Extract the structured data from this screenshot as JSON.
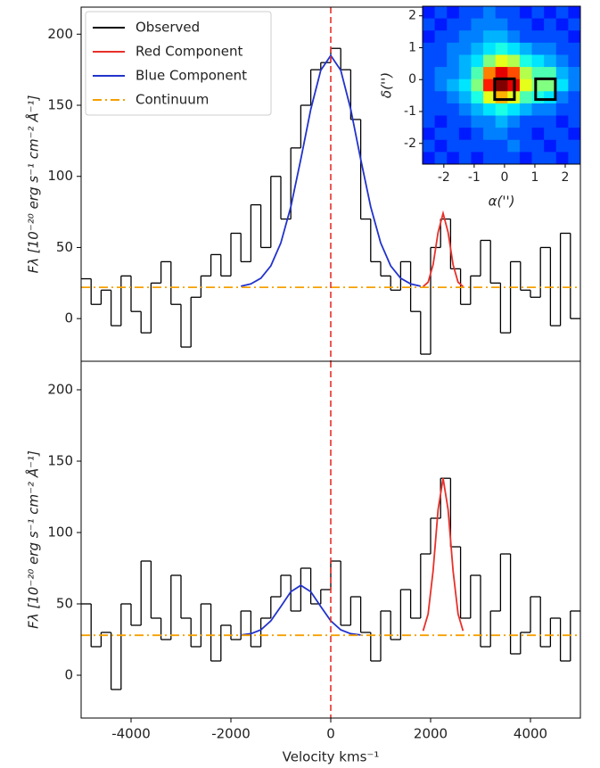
{
  "chart_data": [
    {
      "type": "line",
      "ylabel": "Fλ [10⁻²⁰ erg s⁻¹ cm⁻² Å⁻¹]",
      "xlim": [
        -5000,
        5000
      ],
      "ylim": [
        -30,
        219
      ],
      "yticks": [
        0,
        50,
        100,
        150,
        200
      ],
      "vline": 0,
      "vline_color": "#e8302a",
      "legend": "upper left",
      "series": [
        {
          "name": "Observed",
          "color": "#000000",
          "style": "step",
          "x": [
            -4900,
            -4700,
            -4500,
            -4300,
            -4100,
            -3900,
            -3700,
            -3500,
            -3300,
            -3100,
            -2900,
            -2700,
            -2500,
            -2300,
            -2100,
            -1900,
            -1700,
            -1500,
            -1300,
            -1100,
            -900,
            -700,
            -500,
            -300,
            -100,
            100,
            300,
            500,
            700,
            900,
            1100,
            1300,
            1500,
            1700,
            1900,
            2100,
            2300,
            2500,
            2700,
            2900,
            3100,
            3300,
            3500,
            3700,
            3900,
            4100,
            4300,
            4500,
            4700,
            4900
          ],
          "values": [
            28,
            10,
            20,
            -5,
            30,
            5,
            -10,
            25,
            40,
            10,
            -20,
            15,
            30,
            45,
            30,
            60,
            40,
            80,
            50,
            100,
            70,
            120,
            150,
            175,
            180,
            190,
            175,
            140,
            70,
            40,
            30,
            20,
            40,
            5,
            -25,
            50,
            70,
            35,
            10,
            30,
            55,
            25,
            -10,
            40,
            20,
            15,
            50,
            -5,
            60,
            0
          ]
        },
        {
          "name": "Red Component",
          "color": "#e8302a",
          "style": "solid",
          "x": [
            1850,
            1950,
            2050,
            2150,
            2250,
            2350,
            2450,
            2550,
            2650
          ],
          "values": [
            22.5,
            25.6,
            37.9,
            60.7,
            74,
            60.7,
            37.9,
            25.6,
            22.5
          ]
        },
        {
          "name": "Blue Component",
          "color": "#2233cc",
          "style": "solid",
          "x": [
            -1800,
            -1600,
            -1400,
            -1200,
            -1000,
            -800,
            -600,
            -400,
            -200,
            0,
            200,
            400,
            600,
            800,
            1000,
            1200,
            1400,
            1600,
            1800
          ],
          "values": [
            22.8,
            24.4,
            28.4,
            37.1,
            53.2,
            78.6,
            112,
            147.2,
            174.6,
            185,
            174.6,
            147.2,
            112,
            78.6,
            53.2,
            37.1,
            28.4,
            24.4,
            22.8
          ]
        },
        {
          "name": "Continuum",
          "color": "#f5a000",
          "style": "dashdot",
          "x": [
            -5000,
            5000
          ],
          "values": [
            22,
            22
          ]
        }
      ]
    },
    {
      "type": "line",
      "ylabel": "Fλ [10⁻²⁰ erg s⁻¹ cm⁻² Å⁻¹]",
      "xlabel": "Velocity kms⁻¹",
      "xlim": [
        -5000,
        5000
      ],
      "ylim": [
        -30,
        220
      ],
      "xticks": [
        -4000,
        -2000,
        0,
        2000,
        4000
      ],
      "yticks": [
        0,
        50,
        100,
        150,
        200
      ],
      "vline": 0,
      "vline_color": "#e8302a",
      "series": [
        {
          "color": "#000000",
          "style": "step",
          "x": [
            -4900,
            -4700,
            -4500,
            -4300,
            -4100,
            -3900,
            -3700,
            -3500,
            -3300,
            -3100,
            -2900,
            -2700,
            -2500,
            -2300,
            -2100,
            -1900,
            -1700,
            -1500,
            -1300,
            -1100,
            -900,
            -700,
            -500,
            -300,
            -100,
            100,
            300,
            500,
            700,
            900,
            1100,
            1300,
            1500,
            1700,
            1900,
            2100,
            2300,
            2500,
            2700,
            2900,
            3100,
            3300,
            3500,
            3700,
            3900,
            4100,
            4300,
            4500,
            4700,
            4900
          ],
          "values": [
            50,
            20,
            30,
            -10,
            50,
            35,
            80,
            40,
            25,
            70,
            40,
            20,
            50,
            10,
            35,
            25,
            45,
            20,
            40,
            55,
            70,
            45,
            75,
            50,
            60,
            80,
            35,
            55,
            30,
            10,
            45,
            25,
            60,
            40,
            85,
            110,
            138,
            90,
            40,
            70,
            20,
            45,
            85,
            15,
            30,
            55,
            20,
            40,
            10,
            45
          ]
        },
        {
          "color": "#e8302a",
          "style": "solid",
          "x": [
            1850,
            1950,
            2050,
            2150,
            2250,
            2350,
            2450,
            2550,
            2650
          ],
          "values": [
            31.1,
            42.9,
            73.2,
            116.1,
            138,
            116.1,
            73.2,
            42.9,
            31.1
          ]
        },
        {
          "color": "#2233cc",
          "style": "solid",
          "x": [
            -1800,
            -1600,
            -1400,
            -1200,
            -1000,
            -800,
            -600,
            -400,
            -200,
            0,
            200,
            400,
            600
          ],
          "values": [
            28.2,
            29.1,
            31.8,
            38.1,
            48.1,
            58.5,
            63,
            58.5,
            48.1,
            38.1,
            31.8,
            29.1,
            28.2
          ]
        },
        {
          "color": "#f5a000",
          "style": "dashdot",
          "x": [
            -5000,
            5000
          ],
          "values": [
            28,
            28
          ]
        }
      ]
    },
    {
      "type": "heatmap",
      "xlabel": "α('')",
      "ylabel": "δ('')",
      "xlim": [
        -2.7,
        2.5
      ],
      "ylim": [
        -2.65,
        2.3
      ],
      "xticks": [
        -2,
        -1,
        0,
        1,
        2
      ],
      "yticks": [
        -2,
        -1,
        0,
        1,
        2
      ],
      "values": [
        [
          0.15,
          0.2,
          0.15,
          0.2,
          0.2,
          0.25,
          0.2,
          0.2,
          0.15,
          0.2,
          0.15,
          0.2,
          0.15
        ],
        [
          0.2,
          0.15,
          0.2,
          0.2,
          0.25,
          0.25,
          0.25,
          0.2,
          0.2,
          0.15,
          0.2,
          0.15,
          0.2
        ],
        [
          0.15,
          0.2,
          0.2,
          0.25,
          0.25,
          0.3,
          0.3,
          0.25,
          0.2,
          0.2,
          0.2,
          0.2,
          0.15
        ],
        [
          0.2,
          0.2,
          0.25,
          0.25,
          0.3,
          0.35,
          0.4,
          0.35,
          0.3,
          0.25,
          0.25,
          0.2,
          0.2
        ],
        [
          0.2,
          0.2,
          0.25,
          0.3,
          0.35,
          0.5,
          0.6,
          0.55,
          0.4,
          0.35,
          0.3,
          0.25,
          0.2
        ],
        [
          0.2,
          0.25,
          0.25,
          0.3,
          0.45,
          0.75,
          0.9,
          0.8,
          0.55,
          0.45,
          0.45,
          0.3,
          0.25
        ],
        [
          0.2,
          0.25,
          0.3,
          0.35,
          0.5,
          0.85,
          1.0,
          0.9,
          0.6,
          0.5,
          0.5,
          0.35,
          0.25
        ],
        [
          0.2,
          0.2,
          0.25,
          0.3,
          0.4,
          0.6,
          0.7,
          0.6,
          0.45,
          0.4,
          0.35,
          0.25,
          0.2
        ],
        [
          0.2,
          0.2,
          0.2,
          0.25,
          0.3,
          0.35,
          0.4,
          0.35,
          0.3,
          0.25,
          0.25,
          0.2,
          0.2
        ],
        [
          0.2,
          0.15,
          0.2,
          0.2,
          0.25,
          0.25,
          0.3,
          0.25,
          0.2,
          0.2,
          0.2,
          0.15,
          0.2
        ],
        [
          0.15,
          0.2,
          0.2,
          0.15,
          0.2,
          0.25,
          0.25,
          0.2,
          0.2,
          0.15,
          0.2,
          0.2,
          0.15
        ],
        [
          0.2,
          0.15,
          0.2,
          0.2,
          0.2,
          0.2,
          0.2,
          0.25,
          0.2,
          0.2,
          0.15,
          0.2,
          0.2
        ],
        [
          0.15,
          0.2,
          0.15,
          0.2,
          0.15,
          0.2,
          0.2,
          0.2,
          0.15,
          0.2,
          0.2,
          0.15,
          0.2
        ]
      ],
      "boxes": [
        {
          "x": 0,
          "y": -0.3,
          "size": 0.65
        },
        {
          "x": 1.35,
          "y": -0.3,
          "size": 0.65
        }
      ]
    }
  ]
}
